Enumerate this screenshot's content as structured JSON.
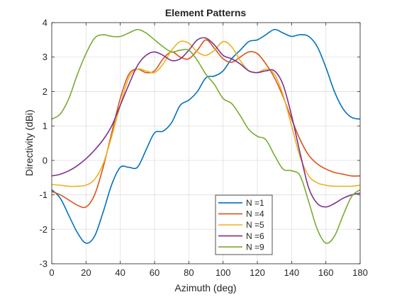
{
  "chart_data": {
    "type": "line",
    "title": "Element Patterns",
    "xlabel": "Azimuth (deg)",
    "ylabel": "Directivity (dBi)",
    "xlim": [
      0,
      180
    ],
    "ylim": [
      -3,
      4
    ],
    "xticks": [
      0,
      20,
      40,
      60,
      80,
      100,
      120,
      140,
      160,
      180
    ],
    "yticks": [
      -3,
      -2,
      -1,
      0,
      1,
      2,
      3,
      4
    ],
    "grid": true,
    "legend_position": "bottom-center",
    "series": [
      {
        "name": "N =1",
        "color": "#0072BD",
        "x": [
          0,
          5,
          10,
          15,
          20,
          25,
          30,
          35,
          40,
          45,
          50,
          55,
          60,
          65,
          70,
          75,
          80,
          85,
          90,
          95,
          100,
          105,
          110,
          115,
          120,
          125,
          130,
          135,
          140,
          145,
          150,
          155,
          160,
          165,
          170,
          175,
          180
        ],
        "y": [
          -0.85,
          -1.1,
          -1.6,
          -2.1,
          -2.4,
          -2.2,
          -1.5,
          -0.7,
          -0.2,
          -0.2,
          -0.2,
          0.3,
          0.8,
          0.85,
          1.1,
          1.6,
          1.75,
          2.0,
          2.4,
          2.45,
          2.6,
          2.95,
          3.2,
          3.45,
          3.5,
          3.65,
          3.8,
          3.7,
          3.6,
          3.65,
          3.6,
          3.3,
          2.7,
          2.0,
          1.5,
          1.25,
          1.2
        ]
      },
      {
        "name": "N =4",
        "color": "#D95319",
        "x": [
          0,
          5,
          10,
          15,
          20,
          25,
          30,
          35,
          40,
          45,
          50,
          55,
          60,
          65,
          70,
          75,
          80,
          85,
          90,
          95,
          100,
          105,
          110,
          115,
          120,
          125,
          130,
          135,
          140,
          145,
          150,
          155,
          160,
          165,
          170,
          175,
          180
        ],
        "y": [
          -0.9,
          -1.0,
          -1.15,
          -1.3,
          -1.35,
          -1.0,
          -0.2,
          0.8,
          1.8,
          2.5,
          2.65,
          2.55,
          2.6,
          2.95,
          3.15,
          3.0,
          2.95,
          3.2,
          3.5,
          3.25,
          2.95,
          2.85,
          3.0,
          3.15,
          3.1,
          2.8,
          2.4,
          1.85,
          1.2,
          0.6,
          0.15,
          -0.1,
          -0.25,
          -0.35,
          -0.4,
          -0.45,
          -0.45
        ]
      },
      {
        "name": "N =5",
        "color": "#EDB120",
        "x": [
          0,
          5,
          10,
          15,
          20,
          25,
          30,
          35,
          40,
          45,
          50,
          55,
          60,
          65,
          70,
          75,
          80,
          85,
          90,
          95,
          100,
          105,
          110,
          115,
          120,
          125,
          130,
          135,
          140,
          145,
          150,
          155,
          160,
          165,
          170,
          175,
          180
        ],
        "y": [
          -0.7,
          -0.72,
          -0.75,
          -0.75,
          -0.72,
          -0.55,
          -0.1,
          0.7,
          1.6,
          2.4,
          2.65,
          2.6,
          2.55,
          2.8,
          3.2,
          3.45,
          3.4,
          3.15,
          3.05,
          3.2,
          3.45,
          3.3,
          2.9,
          2.6,
          2.55,
          2.65,
          2.5,
          1.9,
          1.0,
          0.1,
          -0.45,
          -0.65,
          -0.72,
          -0.75,
          -0.75,
          -0.75,
          -0.72
        ]
      },
      {
        "name": "N =6",
        "color": "#7E2F8E",
        "x": [
          0,
          5,
          10,
          15,
          20,
          25,
          30,
          35,
          40,
          45,
          50,
          55,
          60,
          65,
          70,
          75,
          80,
          85,
          90,
          95,
          100,
          105,
          110,
          115,
          120,
          125,
          130,
          135,
          140,
          145,
          150,
          155,
          160,
          165,
          170,
          175,
          180
        ],
        "y": [
          -0.45,
          -0.4,
          -0.3,
          -0.15,
          0.05,
          0.3,
          0.6,
          1.0,
          1.6,
          2.2,
          2.75,
          3.05,
          3.15,
          3.05,
          2.9,
          2.95,
          3.2,
          3.5,
          3.55,
          3.35,
          3.05,
          2.95,
          2.8,
          2.6,
          2.55,
          2.6,
          2.6,
          2.2,
          1.3,
          0.2,
          -0.8,
          -1.25,
          -1.35,
          -1.25,
          -1.1,
          -1.0,
          -0.95
        ]
      },
      {
        "name": "N =9",
        "color": "#77AC30",
        "x": [
          0,
          5,
          10,
          15,
          20,
          25,
          30,
          35,
          40,
          45,
          50,
          55,
          60,
          65,
          70,
          75,
          80,
          85,
          90,
          95,
          100,
          105,
          110,
          115,
          120,
          125,
          130,
          135,
          140,
          145,
          150,
          155,
          160,
          165,
          170,
          175,
          180
        ],
        "y": [
          1.2,
          1.35,
          1.8,
          2.5,
          3.1,
          3.55,
          3.65,
          3.6,
          3.6,
          3.7,
          3.8,
          3.7,
          3.5,
          3.3,
          3.15,
          3.2,
          3.2,
          2.9,
          2.5,
          2.2,
          1.8,
          1.65,
          1.3,
          0.9,
          0.7,
          0.6,
          0.15,
          -0.25,
          -0.3,
          -0.45,
          -1.2,
          -2.0,
          -2.4,
          -2.2,
          -1.6,
          -1.05,
          -0.85
        ]
      }
    ]
  }
}
